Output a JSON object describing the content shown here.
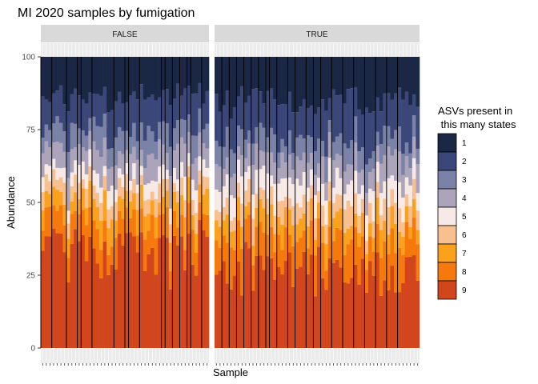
{
  "chart_data": {
    "type": "bar",
    "title": "MI 2020 samples by fumigation",
    "xlabel": "Sample",
    "ylabel": "Abundance",
    "ylim": [
      0,
      100
    ],
    "yticks": [
      0,
      25,
      50,
      75,
      100
    ],
    "grid": true,
    "stacked": true,
    "legend": {
      "title": "ASVs present in\n this many states",
      "placement": "right"
    },
    "categories": [
      "1",
      "2",
      "3",
      "4",
      "5",
      "6",
      "7",
      "8",
      "9"
    ],
    "colors": {
      "1": "#1a2745",
      "2": "#3b4779",
      "3": "#7a82a8",
      "4": "#aba4bb",
      "5": "#f6e9e6",
      "6": "#f9c08f",
      "7": "#faa11e",
      "8": "#f6790d",
      "9": "#d2461e"
    },
    "facets": [
      {
        "name": "FALSE",
        "samples": 46,
        "mean_composition": {
          "9": 33,
          "8": 9,
          "7": 7,
          "6": 5,
          "5": 5,
          "4": 8,
          "3": 8,
          "2": 12,
          "1": 13
        },
        "black_outline_positions": [
          0,
          3,
          7,
          10,
          11,
          14,
          20,
          23,
          24,
          27,
          33,
          34,
          36,
          38,
          40,
          41,
          44
        ]
      },
      {
        "name": "TRUE",
        "samples": 56,
        "mean_composition": {
          "9": 27,
          "8": 11,
          "7": 7,
          "6": 6,
          "5": 7,
          "4": 7,
          "3": 7,
          "2": 13,
          "1": 15
        },
        "black_outline_positions": [
          2,
          4,
          6,
          8,
          10,
          12,
          14,
          15,
          17,
          20,
          22,
          25,
          27,
          29,
          32,
          35,
          38,
          41,
          44,
          47,
          50
        ]
      }
    ]
  }
}
